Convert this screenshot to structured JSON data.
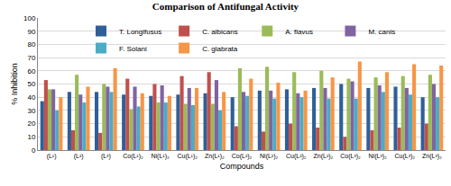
{
  "chart_data": {
    "type": "bar",
    "title": "Comparison of Antifungal Activity",
    "x_label": "Compounds",
    "y_label": "% Inhibition",
    "categories": [
      "(L¹)",
      "(L²)",
      "(L³)",
      "Co(L¹)₂",
      "Ni(L¹)₂",
      "Cu(L¹)₂",
      "Zn(L¹)₂",
      "Co(L²)₂",
      "Ni(L²)₂",
      "Cu(L²)₂",
      "Zn(L²)₂",
      "Co(L³)₂",
      "Ni(L³)₂",
      "Cu(L³)₂",
      "Zn(L³)₂"
    ],
    "series": [
      {
        "name": "T. Longifusus",
        "color": "#2f5f98",
        "values": [
          37,
          44,
          44,
          42,
          41,
          42,
          43,
          40,
          45,
          46,
          47,
          50,
          47,
          48,
          40
        ]
      },
      {
        "name": "C. albicans",
        "color": "#c0504d",
        "values": [
          53,
          15,
          13,
          54,
          50,
          56,
          59,
          18,
          14,
          20,
          17,
          10,
          15,
          17,
          20
        ]
      },
      {
        "name": "A. flavus",
        "color": "#9bbb59",
        "values": [
          46,
          57,
          50,
          31,
          36,
          35,
          35,
          62,
          63,
          59,
          60,
          54,
          55,
          56,
          57
        ]
      },
      {
        "name": "M. canis",
        "color": "#8064a2",
        "values": [
          46,
          42,
          48,
          48,
          49,
          47,
          53,
          44,
          45,
          43,
          47,
          52,
          49,
          47,
          50
        ]
      },
      {
        "name": "F. Solani",
        "color": "#4bacc6",
        "values": [
          30,
          36,
          44,
          33,
          36,
          34,
          30,
          41,
          39,
          40,
          39,
          39,
          44,
          42,
          40
        ]
      },
      {
        "name": "C. glabrata",
        "color": "#f79646",
        "values": [
          40,
          48,
          62,
          43,
          41,
          47,
          44,
          54,
          51,
          45,
          55,
          67,
          59,
          65,
          64
        ]
      }
    ],
    "ylim": [
      0,
      100
    ],
    "yticks": [
      0,
      10,
      20,
      30,
      40,
      50,
      60,
      70,
      80,
      90,
      100
    ],
    "grid": true,
    "legend": "top"
  }
}
